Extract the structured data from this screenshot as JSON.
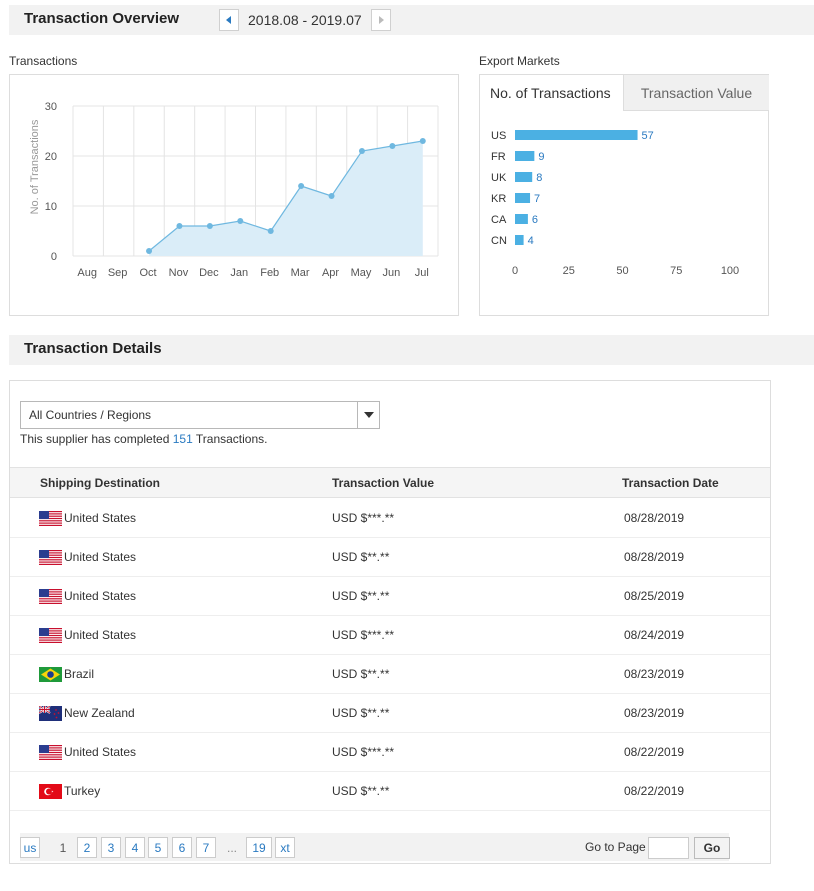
{
  "overview": {
    "title": "Transaction Overview",
    "date_range": "2018.08 - 2019.07",
    "prev_icon": "triangle-left-icon",
    "next_icon": "triangle-right-icon"
  },
  "transactions_panel": {
    "label": "Transactions"
  },
  "export_panel": {
    "label": "Export Markets",
    "tabs": [
      {
        "label": "No. of Transactions",
        "active": true
      },
      {
        "label": "Transaction Value",
        "active": false
      }
    ]
  },
  "chart_data": [
    {
      "type": "area",
      "ylabel": "No. of Transactions",
      "categories": [
        "Aug",
        "Sep",
        "Oct",
        "Nov",
        "Dec",
        "Jan",
        "Feb",
        "Mar",
        "Apr",
        "May",
        "Jun",
        "Jul"
      ],
      "values": [
        null,
        null,
        1,
        6,
        6,
        7,
        5,
        14,
        12,
        21,
        22,
        23
      ],
      "ylim": [
        0,
        30
      ],
      "yticks": [
        0,
        10,
        20,
        30
      ],
      "grid": true,
      "colors": {
        "line": "#6fb8e0",
        "fill": "#daedf8",
        "grid": "#e4e4e4"
      }
    },
    {
      "type": "bar",
      "orientation": "horizontal",
      "categories": [
        "US",
        "FR",
        "UK",
        "KR",
        "CA",
        "CN"
      ],
      "values": [
        57,
        9,
        8,
        7,
        6,
        4
      ],
      "xlim": [
        0,
        100
      ],
      "xticks": [
        0,
        25,
        50,
        75,
        100
      ],
      "colors": {
        "bar": "#4bb0e3",
        "label": "#2a7ac1"
      }
    }
  ],
  "details": {
    "title": "Transaction Details",
    "filter": {
      "value": "All Countries / Regions",
      "arrow_icon": "caret-down-icon"
    },
    "summary": {
      "prefix": "This supplier has completed ",
      "count": "151",
      "suffix": " Transactions."
    },
    "columns": [
      "Shipping Destination",
      "Transaction Value",
      "Transaction Date"
    ],
    "rows": [
      {
        "flag": "us-flag-icon",
        "destination": "United States",
        "value": "USD $***.**",
        "date": "08/28/2019"
      },
      {
        "flag": "us-flag-icon",
        "destination": "United States",
        "value": "USD $**.**",
        "date": "08/28/2019"
      },
      {
        "flag": "us-flag-icon",
        "destination": "United States",
        "value": "USD $**.**",
        "date": "08/25/2019"
      },
      {
        "flag": "us-flag-icon",
        "destination": "United States",
        "value": "USD $***.**",
        "date": "08/24/2019"
      },
      {
        "flag": "brazil-flag-icon",
        "destination": "Brazil",
        "value": "USD $**.**",
        "date": "08/23/2019"
      },
      {
        "flag": "new-zealand-flag-icon",
        "destination": "New Zealand",
        "value": "USD $**.**",
        "date": "08/23/2019"
      },
      {
        "flag": "us-flag-icon",
        "destination": "United States",
        "value": "USD $***.**",
        "date": "08/22/2019"
      },
      {
        "flag": "turkey-flag-icon",
        "destination": "Turkey",
        "value": "USD $**.**",
        "date": "08/22/2019"
      }
    ]
  },
  "pagination": {
    "prev_label": "us",
    "pages": [
      "1",
      "2",
      "3",
      "4",
      "5",
      "6",
      "7"
    ],
    "current_page": "1",
    "ellipsis": "...",
    "last_page": "19",
    "next_label": "xt",
    "goto_label": "Go to Page",
    "go_label": "Go"
  }
}
